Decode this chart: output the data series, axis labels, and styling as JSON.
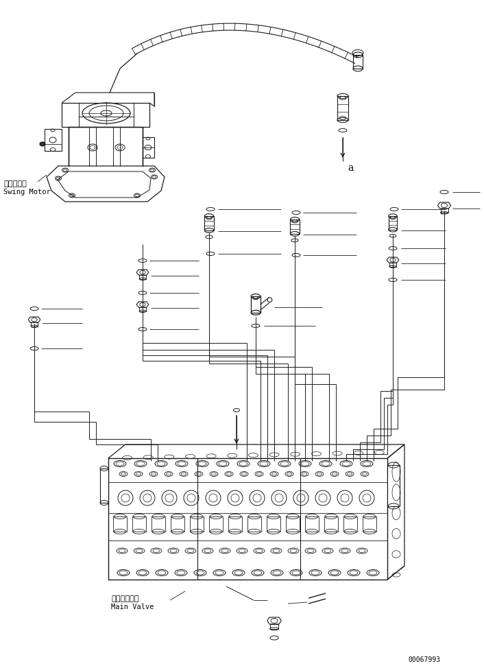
{
  "bg_color": "#ffffff",
  "line_color": "#1a1a1a",
  "text_color": "#000000",
  "fig_width": 7.06,
  "fig_height": 9.71,
  "dpi": 100,
  "swing_motor_label": "旋回モータ",
  "swing_motor_label2": "Swing Motor",
  "main_valve_label": "メインバルブ",
  "main_valve_label2": "Main Valve",
  "part_number": "00067993",
  "label_a": "a",
  "scale": 1.0
}
